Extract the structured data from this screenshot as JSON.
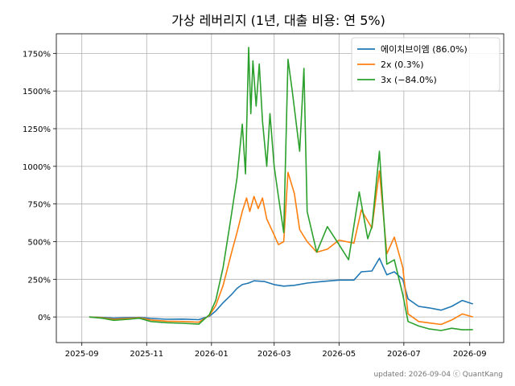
{
  "chart_data": {
    "type": "line",
    "title": "가상 레버리지 (1년, 대출 비용: 연 5%)",
    "xlabel": "",
    "ylabel": "",
    "x_ticks": [
      "2025-09",
      "2025-11",
      "2026-01",
      "2026-03",
      "2026-05",
      "2026-07",
      "2026-09"
    ],
    "y_ticks": [
      "0%",
      "250%",
      "500%",
      "750%",
      "1000%",
      "1250%",
      "1500%",
      "1750%"
    ],
    "ylim": [
      -170,
      1880
    ],
    "xlim": [
      "2025-08-08",
      "2026-10-03"
    ],
    "grid": true,
    "legend_position": "top-right",
    "footnote": "updated: 2026-09-04 ⓒ QuantKang",
    "series": [
      {
        "name": "에이치브이엠 (86.0%)",
        "color": "#1f77b4",
        "points": [
          [
            "2025-09-08",
            0
          ],
          [
            "2025-09-20",
            -3
          ],
          [
            "2025-10-01",
            -8
          ],
          [
            "2025-10-15",
            -5
          ],
          [
            "2025-10-25",
            -3
          ],
          [
            "2025-11-05",
            -10
          ],
          [
            "2025-11-20",
            -15
          ],
          [
            "2025-12-05",
            -14
          ],
          [
            "2025-12-20",
            -18
          ],
          [
            "2025-12-30",
            5
          ],
          [
            "2026-01-05",
            40
          ],
          [
            "2026-01-12",
            95
          ],
          [
            "2026-01-20",
            150
          ],
          [
            "2026-01-25",
            190
          ],
          [
            "2026-01-30",
            215
          ],
          [
            "2026-02-05",
            225
          ],
          [
            "2026-02-10",
            240
          ],
          [
            "2026-02-20",
            235
          ],
          [
            "2026-03-01",
            215
          ],
          [
            "2026-03-10",
            205
          ],
          [
            "2026-03-20",
            210
          ],
          [
            "2026-04-01",
            225
          ],
          [
            "2026-04-15",
            235
          ],
          [
            "2026-05-01",
            245
          ],
          [
            "2026-05-15",
            245
          ],
          [
            "2026-05-22",
            300
          ],
          [
            "2026-06-01",
            305
          ],
          [
            "2026-06-08",
            390
          ],
          [
            "2026-06-15",
            280
          ],
          [
            "2026-06-22",
            300
          ],
          [
            "2026-06-30",
            250
          ],
          [
            "2026-07-05",
            120
          ],
          [
            "2026-07-15",
            70
          ],
          [
            "2026-07-25",
            60
          ],
          [
            "2026-08-05",
            45
          ],
          [
            "2026-08-15",
            70
          ],
          [
            "2026-08-25",
            110
          ],
          [
            "2026-09-04",
            86
          ]
        ]
      },
      {
        "name": "2x (0.3%)",
        "color": "#ff7f0e",
        "points": [
          [
            "2025-09-08",
            0
          ],
          [
            "2025-09-20",
            -5
          ],
          [
            "2025-10-01",
            -15
          ],
          [
            "2025-10-15",
            -10
          ],
          [
            "2025-10-25",
            -5
          ],
          [
            "2025-11-05",
            -20
          ],
          [
            "2025-11-20",
            -28
          ],
          [
            "2025-12-05",
            -30
          ],
          [
            "2025-12-20",
            -35
          ],
          [
            "2025-12-30",
            10
          ],
          [
            "2026-01-05",
            75
          ],
          [
            "2026-01-12",
            210
          ],
          [
            "2026-01-20",
            430
          ],
          [
            "2026-01-25",
            560
          ],
          [
            "2026-01-30",
            700
          ],
          [
            "2026-02-03",
            790
          ],
          [
            "2026-02-06",
            700
          ],
          [
            "2026-02-10",
            800
          ],
          [
            "2026-02-14",
            720
          ],
          [
            "2026-02-18",
            790
          ],
          [
            "2026-02-22",
            650
          ],
          [
            "2026-02-28",
            560
          ],
          [
            "2026-03-05",
            480
          ],
          [
            "2026-03-10",
            500
          ],
          [
            "2026-03-14",
            960
          ],
          [
            "2026-03-20",
            820
          ],
          [
            "2026-03-25",
            580
          ],
          [
            "2026-04-01",
            500
          ],
          [
            "2026-04-10",
            430
          ],
          [
            "2026-04-20",
            450
          ],
          [
            "2026-05-01",
            510
          ],
          [
            "2026-05-15",
            490
          ],
          [
            "2026-05-22",
            710
          ],
          [
            "2026-06-01",
            590
          ],
          [
            "2026-06-08",
            970
          ],
          [
            "2026-06-15",
            420
          ],
          [
            "2026-06-22",
            530
          ],
          [
            "2026-06-30",
            330
          ],
          [
            "2026-07-05",
            20
          ],
          [
            "2026-07-15",
            -30
          ],
          [
            "2026-07-25",
            -40
          ],
          [
            "2026-08-05",
            -50
          ],
          [
            "2026-08-15",
            -20
          ],
          [
            "2026-08-25",
            20
          ],
          [
            "2026-09-04",
            0.3
          ]
        ]
      },
      {
        "name": "3x (−84.0%)",
        "color": "#2ca02c",
        "points": [
          [
            "2025-09-08",
            0
          ],
          [
            "2025-09-20",
            -8
          ],
          [
            "2025-10-01",
            -22
          ],
          [
            "2025-10-15",
            -15
          ],
          [
            "2025-10-25",
            -8
          ],
          [
            "2025-11-05",
            -30
          ],
          [
            "2025-11-20",
            -38
          ],
          [
            "2025-12-05",
            -42
          ],
          [
            "2025-12-20",
            -48
          ],
          [
            "2025-12-30",
            15
          ],
          [
            "2026-01-05",
            110
          ],
          [
            "2026-01-12",
            330
          ],
          [
            "2026-01-18",
            600
          ],
          [
            "2026-01-25",
            920
          ],
          [
            "2026-01-30",
            1280
          ],
          [
            "2026-02-02",
            950
          ],
          [
            "2026-02-05",
            1790
          ],
          [
            "2026-02-07",
            1350
          ],
          [
            "2026-02-09",
            1700
          ],
          [
            "2026-02-12",
            1400
          ],
          [
            "2026-02-15",
            1680
          ],
          [
            "2026-02-18",
            1300
          ],
          [
            "2026-02-22",
            1000
          ],
          [
            "2026-02-25",
            1350
          ],
          [
            "2026-03-01",
            1000
          ],
          [
            "2026-03-05",
            800
          ],
          [
            "2026-03-10",
            560
          ],
          [
            "2026-03-14",
            1710
          ],
          [
            "2026-03-18",
            1500
          ],
          [
            "2026-03-25",
            1100
          ],
          [
            "2026-03-29",
            1650
          ],
          [
            "2026-04-01",
            700
          ],
          [
            "2026-04-10",
            430
          ],
          [
            "2026-04-20",
            600
          ],
          [
            "2026-05-01",
            480
          ],
          [
            "2026-05-10",
            380
          ],
          [
            "2026-05-20",
            830
          ],
          [
            "2026-05-28",
            520
          ],
          [
            "2026-06-01",
            600
          ],
          [
            "2026-06-08",
            1100
          ],
          [
            "2026-06-15",
            350
          ],
          [
            "2026-06-22",
            380
          ],
          [
            "2026-06-30",
            150
          ],
          [
            "2026-07-05",
            -30
          ],
          [
            "2026-07-15",
            -60
          ],
          [
            "2026-07-25",
            -80
          ],
          [
            "2026-08-05",
            -90
          ],
          [
            "2026-08-15",
            -75
          ],
          [
            "2026-08-25",
            -85
          ],
          [
            "2026-09-04",
            -84
          ]
        ]
      }
    ]
  }
}
